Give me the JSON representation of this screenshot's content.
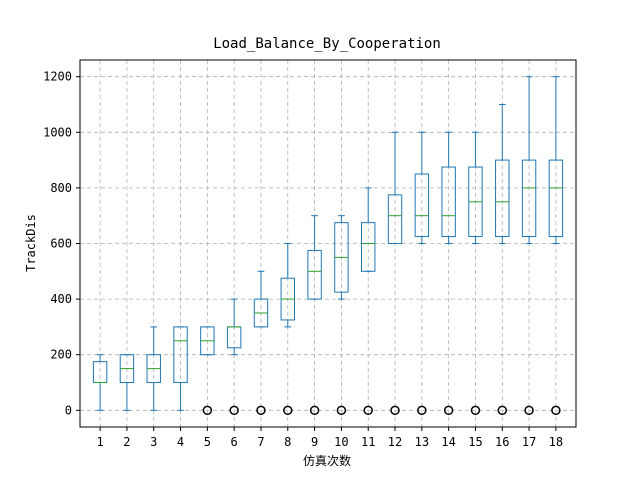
{
  "chart_data": {
    "type": "boxplot",
    "title": "Load_Balance_By_Cooperation",
    "xlabel": "仿真次数",
    "ylabel": "TrackDis",
    "ylim": [
      -60,
      1260
    ],
    "yticks": [
      0,
      200,
      400,
      600,
      800,
      1000,
      1200
    ],
    "grid": true,
    "colors": {
      "box": "#1f77b4",
      "median": "#2ca02c",
      "flier": "#000000",
      "grid": "#b0b0b0",
      "frame": "#000000"
    },
    "categories": [
      "1",
      "2",
      "3",
      "4",
      "5",
      "6",
      "7",
      "8",
      "9",
      "10",
      "11",
      "12",
      "13",
      "14",
      "15",
      "16",
      "17",
      "18"
    ],
    "boxes": [
      {
        "whislo": 0,
        "q1": 100,
        "med": 100,
        "q3": 175,
        "whishi": 200,
        "fliers": []
      },
      {
        "whislo": 0,
        "q1": 100,
        "med": 150,
        "q3": 200,
        "whishi": 200,
        "fliers": []
      },
      {
        "whislo": 0,
        "q1": 100,
        "med": 150,
        "q3": 200,
        "whishi": 300,
        "fliers": []
      },
      {
        "whislo": 0,
        "q1": 100,
        "med": 250,
        "q3": 300,
        "whishi": 300,
        "fliers": []
      },
      {
        "whislo": 200,
        "q1": 200,
        "med": 250,
        "q3": 300,
        "whishi": 300,
        "fliers": [
          0
        ]
      },
      {
        "whislo": 200,
        "q1": 225,
        "med": 300,
        "q3": 300,
        "whishi": 400,
        "fliers": [
          0
        ]
      },
      {
        "whislo": 300,
        "q1": 300,
        "med": 350,
        "q3": 400,
        "whishi": 500,
        "fliers": [
          0
        ]
      },
      {
        "whislo": 300,
        "q1": 325,
        "med": 400,
        "q3": 475,
        "whishi": 600,
        "fliers": [
          0
        ]
      },
      {
        "whislo": 400,
        "q1": 400,
        "med": 500,
        "q3": 575,
        "whishi": 700,
        "fliers": [
          0
        ]
      },
      {
        "whislo": 400,
        "q1": 425,
        "med": 550,
        "q3": 675,
        "whishi": 700,
        "fliers": [
          0
        ]
      },
      {
        "whislo": 500,
        "q1": 500,
        "med": 600,
        "q3": 675,
        "whishi": 800,
        "fliers": [
          0
        ]
      },
      {
        "whislo": 600,
        "q1": 600,
        "med": 700,
        "q3": 775,
        "whishi": 1000,
        "fliers": [
          0
        ]
      },
      {
        "whislo": 600,
        "q1": 625,
        "med": 700,
        "q3": 850,
        "whishi": 1000,
        "fliers": [
          0
        ]
      },
      {
        "whislo": 600,
        "q1": 625,
        "med": 700,
        "q3": 875,
        "whishi": 1000,
        "fliers": [
          0
        ]
      },
      {
        "whislo": 600,
        "q1": 625,
        "med": 750,
        "q3": 875,
        "whishi": 1000,
        "fliers": [
          0
        ]
      },
      {
        "whislo": 600,
        "q1": 625,
        "med": 750,
        "q3": 900,
        "whishi": 1100,
        "fliers": [
          0
        ]
      },
      {
        "whislo": 600,
        "q1": 625,
        "med": 800,
        "q3": 900,
        "whishi": 1200,
        "fliers": [
          0
        ]
      },
      {
        "whislo": 600,
        "q1": 625,
        "med": 800,
        "q3": 900,
        "whishi": 1200,
        "fliers": [
          0
        ]
      }
    ]
  }
}
